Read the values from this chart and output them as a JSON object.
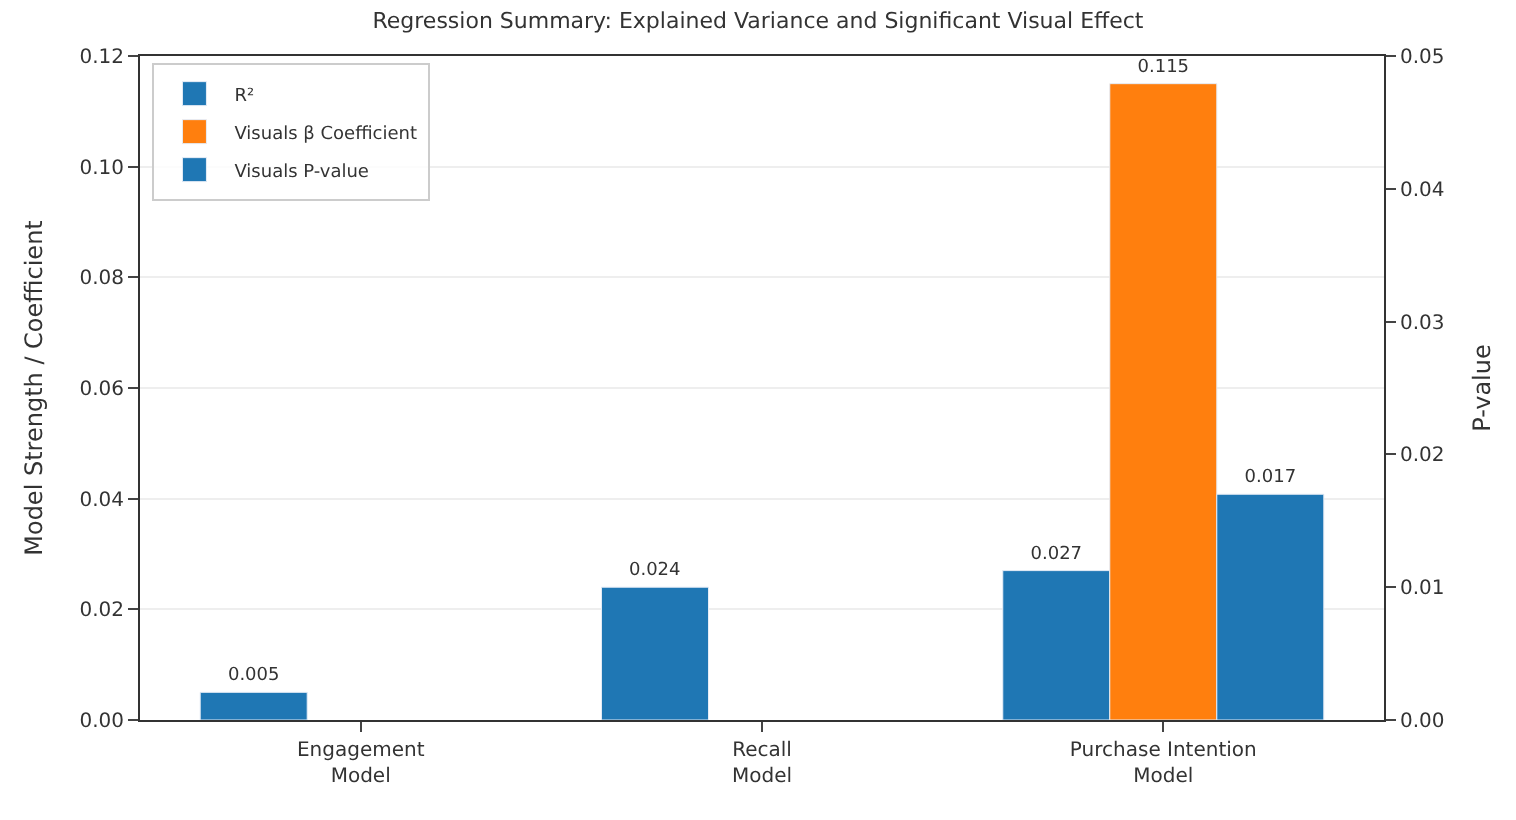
{
  "chart_data": {
    "type": "bar",
    "title": "Regression Summary: Explained Variance and Significant Visual Effect",
    "ylabel": "Model Strength / Coefficient",
    "y2label": "P-value",
    "categories": [
      "Engagement Model",
      "Recall Model",
      "Purchase Intention Model"
    ],
    "series": [
      {
        "name": "R²",
        "color": "#1f77b4",
        "values": [
          0.005,
          0.024,
          0.027
        ]
      },
      {
        "name": "Visuals β Coefficient",
        "color": "#ff7f0e",
        "values": [
          null,
          null,
          0.115
        ]
      },
      {
        "name": "Visuals P-value",
        "color": "#1f77b4",
        "values": [
          null,
          null,
          0.017
        ],
        "axis": "y2"
      }
    ],
    "ylim": [
      0,
      0.12
    ],
    "yticks": [
      {
        "value": 0,
        "label": "0.00"
      },
      {
        "value": 0.02,
        "label": "0.02"
      },
      {
        "value": 0.04,
        "label": "0.04"
      },
      {
        "value": 0.06,
        "label": "0.06"
      },
      {
        "value": 0.08,
        "label": "0.08"
      },
      {
        "value": 0.1,
        "label": "0.10"
      },
      {
        "value": 0.12,
        "label": "0.12"
      }
    ],
    "y2lim": [
      0,
      0.05
    ],
    "y2ticks": [
      {
        "value": 0,
        "label": "0.00"
      },
      {
        "value": 0.01,
        "label": "0.01"
      },
      {
        "value": 0.02,
        "label": "0.02"
      },
      {
        "value": 0.03,
        "label": "0.03"
      },
      {
        "value": 0.04,
        "label": "0.04"
      },
      {
        "value": 0.05,
        "label": "0.05"
      }
    ],
    "data_labels": true,
    "grid": "y",
    "legend": "top left"
  }
}
